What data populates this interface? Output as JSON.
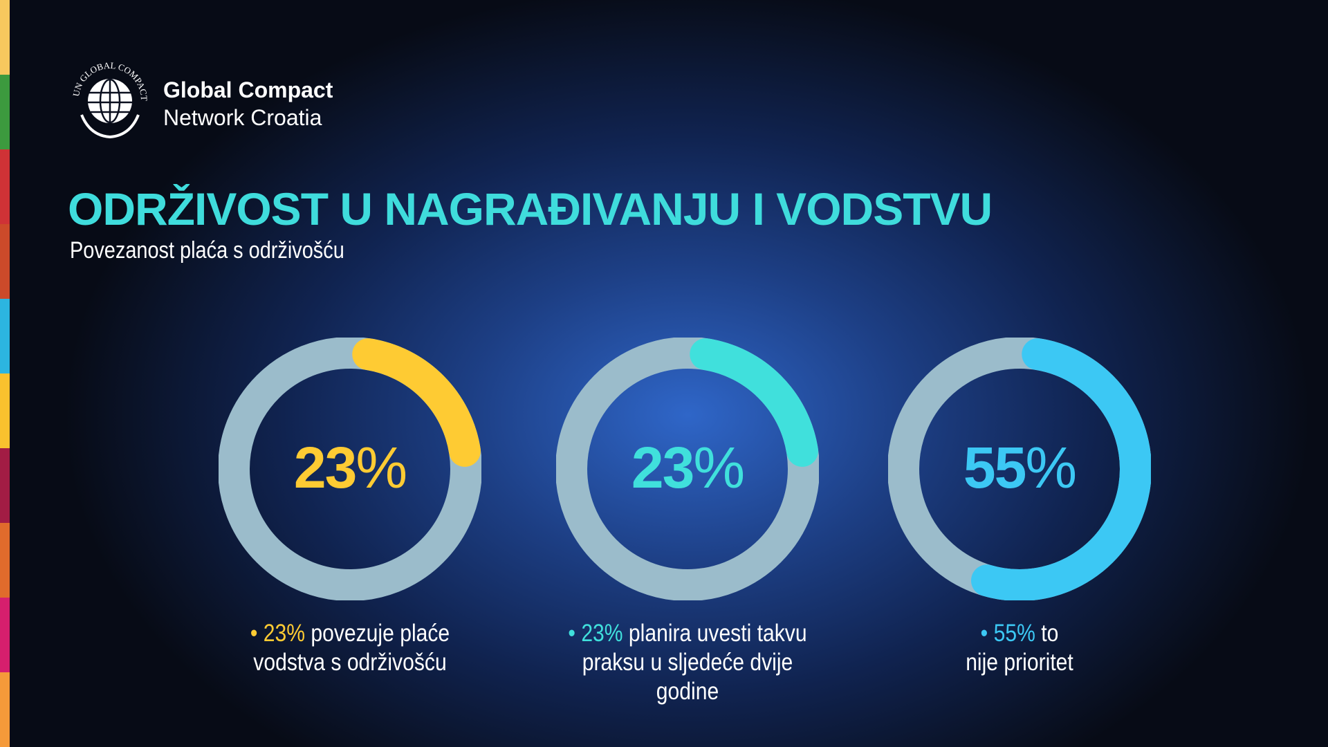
{
  "stripe_colors": [
    "#f7c85e",
    "#3c9a3e",
    "#cf3236",
    "#cc4a2a",
    "#2cb5e0",
    "#f9c12e",
    "#a21c44",
    "#e06b2c",
    "#d61f6d",
    "#f59a3a"
  ],
  "brand": {
    "logo_text": "UN GLOBAL COMPACT",
    "line1": "Global Compact",
    "line2": "Network Croatia"
  },
  "title": "ODRŽIVOST U NAGRAĐIVANJU I VODSTVU",
  "subtitle": "Povezanost plaća s održivošću",
  "chart_data": {
    "type": "pie",
    "track_color": "#9bbccb",
    "items": [
      {
        "value": 23,
        "number": "23",
        "sign": "%",
        "color": "#fecb33",
        "caption_pct": "23%",
        "caption_line1": " povezuje plaće",
        "caption_line2": "vodstva s održivošću",
        "caption_line3": ""
      },
      {
        "value": 23,
        "number": "23",
        "sign": "%",
        "color": "#40e0dc",
        "caption_pct": "23%",
        "caption_line1": " planira uvesti takvu",
        "caption_line2": "praksu u sljedeće dvije",
        "caption_line3": "godine"
      },
      {
        "value": 55,
        "number": "55",
        "sign": "%",
        "color": "#3cc8f4",
        "caption_pct": "55%",
        "caption_line1": " to",
        "caption_line2": "nije prioritet",
        "caption_line3": ""
      }
    ]
  }
}
